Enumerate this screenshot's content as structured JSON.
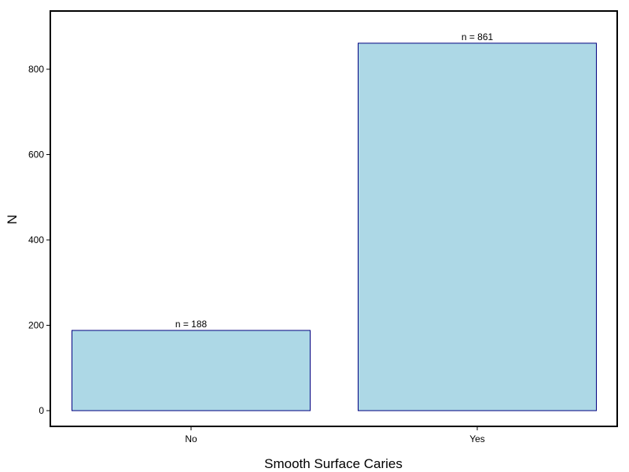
{
  "chart_data": {
    "type": "bar",
    "title": "",
    "xlabel": "Smooth Surface Caries",
    "ylabel": "N",
    "categories": [
      "No",
      "Yes"
    ],
    "values": [
      188,
      861
    ],
    "data_labels": [
      "n =  188",
      "n =  861"
    ],
    "ylim": [
      -35,
      905
    ],
    "yticks": [
      0,
      200,
      400,
      600,
      800
    ],
    "grid": false,
    "legend": "none",
    "colors": {
      "bar_fill": "#add8e6",
      "bar_stroke": "#000080",
      "frame": "#000000"
    }
  }
}
